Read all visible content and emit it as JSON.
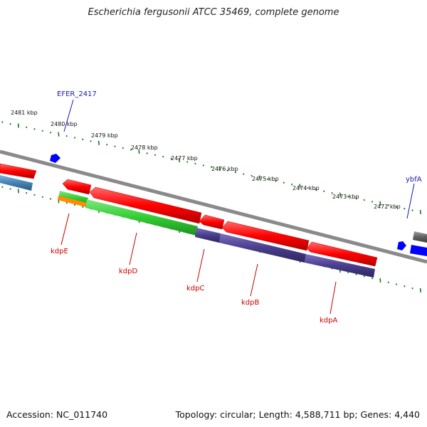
{
  "title": "Escherichia fergusonii ATCC 35469, complete genome",
  "footer": {
    "accession": "Accession: NC_011740",
    "topology": "Topology: circular; Length: 4,588,711 bp; Genes: 4,440"
  },
  "scale_labels": [
    "2481 kbp",
    "2480 kbp",
    "2479 kbp",
    "2478 kbp",
    "2477 kbp",
    "2476 kbp",
    "2475 kbp",
    "2474 kbp",
    "2473 kbp",
    "2472 kbp"
  ],
  "gene_labels": {
    "top": [
      "EFER_2417",
      "ybfA"
    ],
    "bottom": [
      "kdpE",
      "kdpD",
      "kdpC",
      "kdpB",
      "kdpA"
    ]
  },
  "colors": {
    "backbone": "#8a8a8a",
    "cds": "#ff0000",
    "gene": "#32cd32",
    "regulator": "#ff8c00",
    "membrane": "#483d8b",
    "misc": "#4682b4",
    "small_feature": "#0000ff",
    "scale": "#1a7a1a",
    "top_label": "#1a1aaa",
    "bottom_label": "#cc0000"
  }
}
